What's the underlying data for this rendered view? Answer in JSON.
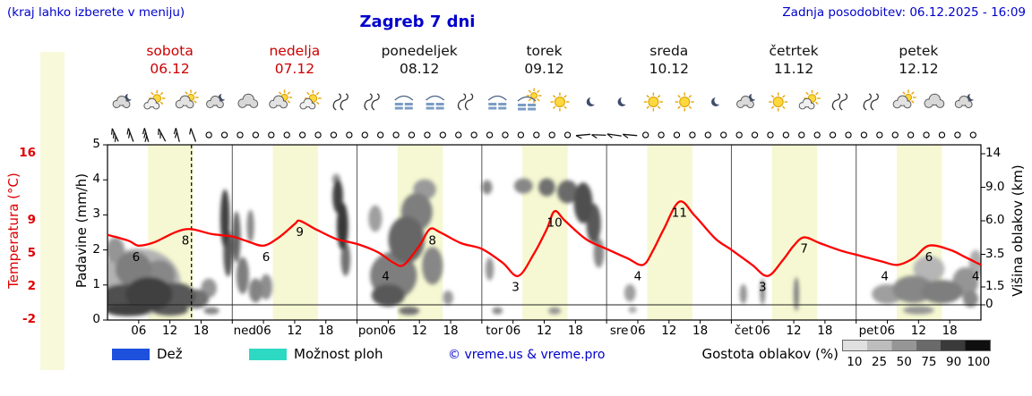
{
  "header": {
    "hint": "(kraj lahko izberete v meniju)",
    "title": "Zagreb 7 dni",
    "updated": "Zadnja posodobitev: 06.12.2025 - 16:09"
  },
  "days": [
    {
      "name": "sobota",
      "date": "06.12"
    },
    {
      "name": "nedelja",
      "date": "07.12"
    },
    {
      "name": "ponedeljek",
      "date": "08.12"
    },
    {
      "name": "torek",
      "date": "09.12"
    },
    {
      "name": "sreda",
      "date": "10.12"
    },
    {
      "name": "četrtek",
      "date": "11.12"
    },
    {
      "name": "petek",
      "date": "12.12"
    }
  ],
  "axes": {
    "temperature": {
      "label": "Temperatura (°C)",
      "ticks": [
        "16",
        "9",
        "5",
        "2",
        "-2"
      ]
    },
    "precipitation": {
      "label": "Padavine (mm/h)",
      "ticks": [
        "5",
        "4",
        "3",
        "2",
        "1",
        "0"
      ]
    },
    "cloud_height": {
      "label": "Višina oblakov (km)",
      "ticks": [
        "14",
        "9.0",
        "6.0",
        "3.5",
        "1.5",
        "0"
      ]
    }
  },
  "x_axis": {
    "hour_labels": [
      "06",
      "12",
      "18"
    ],
    "day_shorts": [
      "ned",
      "pon",
      "tor",
      "sre",
      "čet",
      "pet"
    ]
  },
  "legend": {
    "rain_label": "Dež",
    "rain_color": "#1d50dd",
    "showers_label": "Možnost ploh",
    "showers_color": "#2ed9c3",
    "credit": "© vreme.us & vreme.pro",
    "cloud_density_label": "Gostota oblakov (%)",
    "density_ticks": [
      "10",
      "25",
      "50",
      "75",
      "90",
      "100"
    ]
  },
  "colors": {
    "accent_blue": "#0000cc",
    "weekend_red": "#cc0000",
    "temperature_line": "#ff0000",
    "daylight_band": "#f5f8d2"
  },
  "chart_data": {
    "type": "line",
    "title": "Zagreb 7 dni",
    "x_unit": "hours from 06.12. 00:00, 24 h per day, 7 days",
    "now_hour": 16.15,
    "daylight_hours": {
      "start": 7.8,
      "end": 16.5
    },
    "series": [
      {
        "name": "Temperatura (°C)",
        "color": "#ff0000",
        "x": [
          0,
          4,
          6,
          9,
          13,
          16,
          20,
          24,
          27,
          30,
          33,
          36,
          37,
          40,
          44,
          48,
          52,
          55,
          57,
          60,
          62,
          64,
          68,
          72,
          76,
          79,
          82,
          84.5,
          86,
          88,
          92,
          96,
          100,
          103,
          105,
          107,
          110,
          113,
          117,
          120,
          124,
          127,
          130,
          132,
          134,
          137,
          141,
          145,
          149,
          152,
          155,
          158,
          162,
          165,
          168
        ],
        "y": [
          7.3,
          6.6,
          6.0,
          6.4,
          7.6,
          8.0,
          7.4,
          7.1,
          6.5,
          6.0,
          7.0,
          8.6,
          9.0,
          8.0,
          6.8,
          6.2,
          5.2,
          4.2,
          4.0,
          6.0,
          8.0,
          7.6,
          6.3,
          5.6,
          4.2,
          3.0,
          5.0,
          8.0,
          10.0,
          9.0,
          6.8,
          5.6,
          4.6,
          4.0,
          5.5,
          8.0,
          11.0,
          9.5,
          6.8,
          5.5,
          4.0,
          3.0,
          4.5,
          6.0,
          7.0,
          6.3,
          5.4,
          4.8,
          4.3,
          4.0,
          4.6,
          6.0,
          5.5,
          4.7,
          4.0
        ]
      }
    ],
    "point_labels": [
      [
        5.5,
        6
      ],
      [
        15,
        8
      ],
      [
        30.5,
        6
      ],
      [
        37,
        9
      ],
      [
        53.5,
        4
      ],
      [
        62.5,
        8
      ],
      [
        78.5,
        3
      ],
      [
        86,
        10
      ],
      [
        102,
        4
      ],
      [
        110,
        11
      ],
      [
        126,
        3
      ],
      [
        134,
        7
      ],
      [
        149.5,
        4
      ],
      [
        158,
        6
      ],
      [
        167,
        4
      ]
    ],
    "day_min_max": [
      [
        6,
        8
      ],
      [
        6,
        9
      ],
      [
        4,
        8
      ],
      [
        3,
        10
      ],
      [
        4,
        11
      ],
      [
        3,
        7
      ],
      [
        4,
        6
      ]
    ],
    "weather_icons": [
      "cloud-moon",
      "sun-cloud",
      "cloud-sun",
      "cloud-moon",
      "cloud",
      "cloud-sun",
      "sun-cloud",
      "wind",
      "wind",
      "fog",
      "fog",
      "wind",
      "fog",
      "fog-sun",
      "sun",
      "moon",
      "moon",
      "sun",
      "sun",
      "moon",
      "cloud-moon",
      "sun",
      "sun-cloud",
      "wind",
      "wind",
      "cloud-sun",
      "cloud",
      "cloud-moon"
    ],
    "wind_symbols": {
      "slots": 56,
      "calm_symbol": "circle",
      "barbs": [
        {
          "slot": 0,
          "angle": 115,
          "feathers": 3
        },
        {
          "slot": 1,
          "angle": 110,
          "feathers": 2
        },
        {
          "slot": 2,
          "angle": 106,
          "feathers": 3
        },
        {
          "slot": 3,
          "angle": 118,
          "feathers": 2
        },
        {
          "slot": 4,
          "angle": 104,
          "feathers": 2
        },
        {
          "slot": 5,
          "angle": 110,
          "feathers": 1
        },
        {
          "slot": 30,
          "angle": 185,
          "feathers": 1
        },
        {
          "slot": 31,
          "angle": 178,
          "feathers": 1
        },
        {
          "slot": 32,
          "angle": 172,
          "feathers": 1
        },
        {
          "slot": 33,
          "angle": 175,
          "feathers": 1
        }
      ]
    },
    "cloud_blobs": [
      [
        6,
        1.8,
        8,
        2.4,
        0.3
      ],
      [
        3,
        0.6,
        4.5,
        1.1,
        0.72
      ],
      [
        8,
        0.9,
        4.5,
        1.3,
        0.78
      ],
      [
        13,
        0.7,
        4,
        1.1,
        0.68
      ],
      [
        5,
        2.6,
        3.5,
        1.1,
        0.52
      ],
      [
        10,
        2.2,
        3,
        1.0,
        0.48
      ],
      [
        1.5,
        3.8,
        1.8,
        0.9,
        0.42
      ],
      [
        17,
        0.5,
        2.5,
        0.8,
        0.58
      ],
      [
        19.5,
        1.4,
        1.5,
        0.7,
        0.42
      ],
      [
        4,
        -0.45,
        4.5,
        0.5,
        0.78
      ],
      [
        12,
        -0.45,
        3.5,
        0.45,
        0.68
      ],
      [
        20,
        -0.5,
        1.5,
        0.3,
        0.5
      ],
      [
        22.6,
        6.2,
        0.9,
        2.4,
        0.78
      ],
      [
        23.2,
        3.6,
        0.9,
        1.6,
        0.68
      ],
      [
        24.8,
        4.8,
        0.8,
        1.9,
        0.62
      ],
      [
        26,
        2.2,
        1.2,
        1.2,
        0.52
      ],
      [
        27.5,
        5.6,
        0.7,
        1.3,
        0.48
      ],
      [
        28.5,
        1.2,
        1.3,
        0.9,
        0.5
      ],
      [
        30.5,
        1.5,
        1.2,
        0.9,
        0.45
      ],
      [
        44.3,
        8.2,
        1.0,
        1.7,
        0.78
      ],
      [
        45.2,
        5.6,
        1.1,
        1.9,
        0.82
      ],
      [
        45.8,
        3.2,
        0.9,
        1.1,
        0.58
      ],
      [
        44,
        10.2,
        0.8,
        0.8,
        0.42
      ],
      [
        55,
        2.2,
        4.5,
        1.6,
        0.52
      ],
      [
        57.5,
        4.6,
        3.5,
        1.7,
        0.62
      ],
      [
        59.5,
        6.8,
        3,
        1.6,
        0.52
      ],
      [
        61,
        8.8,
        2.2,
        1.1,
        0.4
      ],
      [
        54,
        0.8,
        3.2,
        0.9,
        0.68
      ],
      [
        62.5,
        2.8,
        2,
        1.2,
        0.48
      ],
      [
        51.5,
        6.2,
        1.3,
        1.1,
        0.38
      ],
      [
        58,
        -0.5,
        2,
        0.35,
        0.58
      ],
      [
        65.5,
        0.6,
        1,
        0.6,
        0.4
      ],
      [
        73,
        9.0,
        1.0,
        0.8,
        0.48
      ],
      [
        73.5,
        2.6,
        0.8,
        0.7,
        0.42
      ],
      [
        75,
        -0.5,
        1,
        0.3,
        0.48
      ],
      [
        80,
        9.2,
        1.8,
        0.9,
        0.48
      ],
      [
        84.5,
        9.0,
        1.6,
        1.0,
        0.58
      ],
      [
        88.5,
        8.6,
        2,
        1.2,
        0.6
      ],
      [
        91.5,
        7.6,
        1.8,
        1.9,
        0.72
      ],
      [
        93.5,
        5.8,
        1.4,
        1.6,
        0.68
      ],
      [
        94.5,
        3.6,
        1.0,
        1.0,
        0.48
      ],
      [
        86,
        -0.5,
        1.2,
        0.3,
        0.42
      ],
      [
        100.5,
        1.0,
        1.1,
        0.7,
        0.38
      ],
      [
        101,
        -0.4,
        0.8,
        0.3,
        0.32
      ],
      [
        122.3,
        0.9,
        0.7,
        0.8,
        0.42
      ],
      [
        126,
        1.1,
        0.5,
        1.0,
        0.48
      ],
      [
        132.5,
        0.9,
        0.5,
        1.3,
        0.52
      ],
      [
        150,
        0.9,
        3,
        0.8,
        0.38
      ],
      [
        155,
        1.3,
        4,
        1.0,
        0.48
      ],
      [
        160.5,
        1.1,
        4,
        0.9,
        0.52
      ],
      [
        165,
        1.8,
        2.5,
        1.0,
        0.42
      ],
      [
        158,
        2.6,
        3,
        0.8,
        0.28
      ],
      [
        167,
        2.9,
        1.3,
        0.9,
        0.32
      ],
      [
        156,
        -0.45,
        3,
        0.35,
        0.42
      ],
      [
        166,
        0.5,
        1.5,
        0.7,
        0.48
      ]
    ]
  }
}
